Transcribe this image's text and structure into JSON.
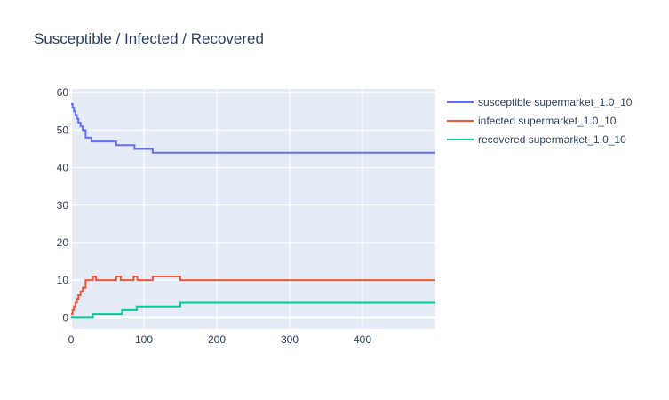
{
  "chart_data": {
    "type": "line",
    "title": "Susceptible / Infected / Recovered",
    "xlabel": "",
    "ylabel": "",
    "xlim": [
      0,
      500
    ],
    "ylim": [
      -3,
      61
    ],
    "x_ticks": [
      0,
      100,
      200,
      300,
      400
    ],
    "y_ticks": [
      0,
      10,
      20,
      30,
      40,
      50,
      60
    ],
    "grid": true,
    "legend_position": "top-right",
    "step": true,
    "series": [
      {
        "name": "susceptible supermarket_1.0_10",
        "color": "#636efa",
        "x": [
          0,
          2,
          4,
          6,
          8,
          10,
          13,
          16,
          20,
          28,
          62,
          87,
          112,
          500
        ],
        "y": [
          57,
          56,
          55,
          54,
          53,
          52,
          51,
          50,
          48,
          47,
          46,
          45,
          44,
          44
        ]
      },
      {
        "name": "infected supermarket_1.0_10",
        "color": "#ef553b",
        "x": [
          0,
          2,
          4,
          6,
          8,
          10,
          13,
          16,
          20,
          28,
          30,
          34,
          62,
          68,
          86,
          91,
          112,
          150,
          500
        ],
        "y": [
          1,
          2,
          3,
          4,
          5,
          6,
          7,
          8,
          10,
          10,
          11,
          10,
          11,
          10,
          11,
          10,
          11,
          10,
          10
        ]
      },
      {
        "name": "recovered supermarket_1.0_10",
        "color": "#00cc96",
        "x": [
          0,
          30,
          70,
          90,
          150,
          500
        ],
        "y": [
          0,
          1,
          2,
          3,
          4,
          4
        ]
      }
    ]
  }
}
